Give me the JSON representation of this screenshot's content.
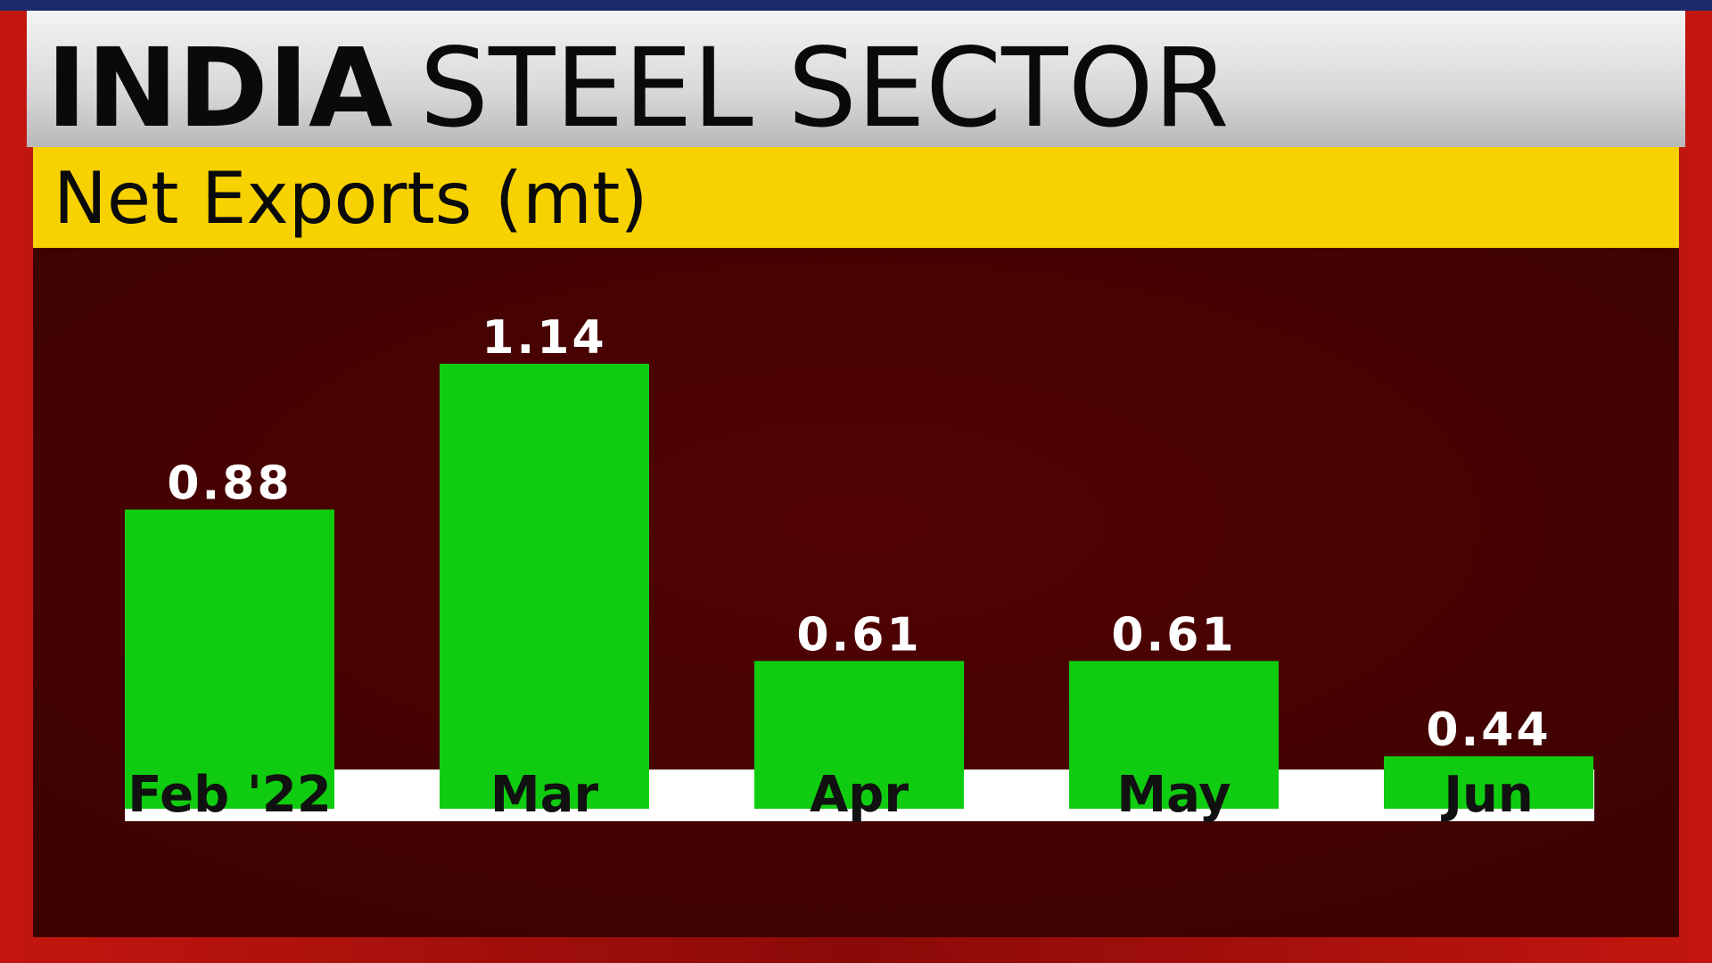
{
  "chart_data": {
    "type": "bar",
    "title": [
      "INDIA",
      "STEEL SECTOR"
    ],
    "subtitle": "Net Exports (mt)",
    "categories": [
      "Feb '22",
      "Mar",
      "Apr",
      "May",
      "Jun"
    ],
    "values": [
      0.88,
      1.14,
      0.61,
      0.61,
      0.44
    ],
    "color": "#10cc10"
  }
}
